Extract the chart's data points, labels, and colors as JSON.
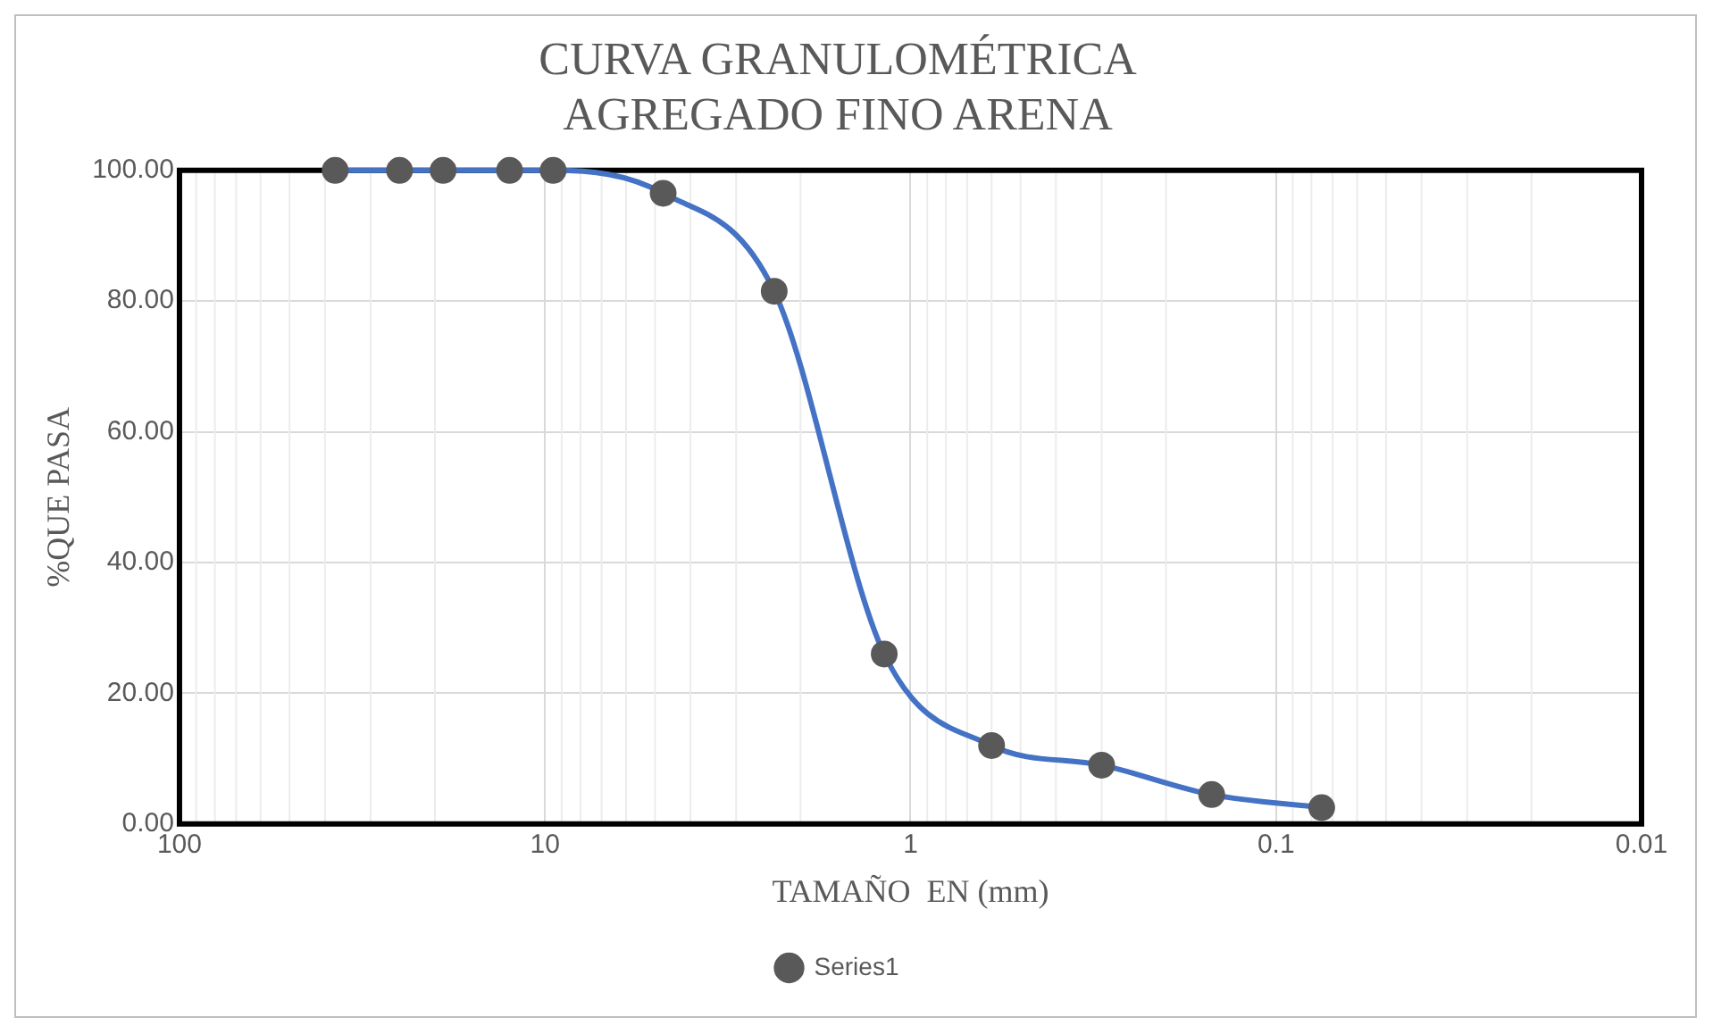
{
  "chart_data": {
    "type": "line",
    "title": "CURVA GRANULOMÉTRICA\nAGREGADO FINO ARENA",
    "xlabel": "TAMAÑO  EN (mm)",
    "ylabel": "%QUE PASA",
    "x": [
      37.5,
      25,
      19,
      12.5,
      9.5,
      4.75,
      2.36,
      1.18,
      0.6,
      0.3,
      0.15,
      0.075
    ],
    "series": [
      {
        "name": "Series1",
        "color": "#4472c4",
        "values": [
          100,
          100,
          100,
          100,
          100,
          96.5,
          81.5,
          26,
          12,
          9,
          4.5,
          2.5
        ]
      }
    ],
    "xlim": [
      100,
      0.01
    ],
    "xticks": [
      100,
      10,
      1,
      0.1,
      0.01
    ],
    "ylim": [
      0,
      100
    ],
    "yticks": [
      {
        "value": 0,
        "label": "0.00"
      },
      {
        "value": 20,
        "label": "20.00"
      },
      {
        "value": 40,
        "label": "40.00"
      },
      {
        "value": 60,
        "label": "60.00"
      },
      {
        "value": 80,
        "label": "80.00"
      },
      {
        "value": 100,
        "label": "100.00"
      }
    ],
    "log": "x",
    "grid": true,
    "legend": "bottom",
    "marker": "circle",
    "line_style": "solid"
  }
}
